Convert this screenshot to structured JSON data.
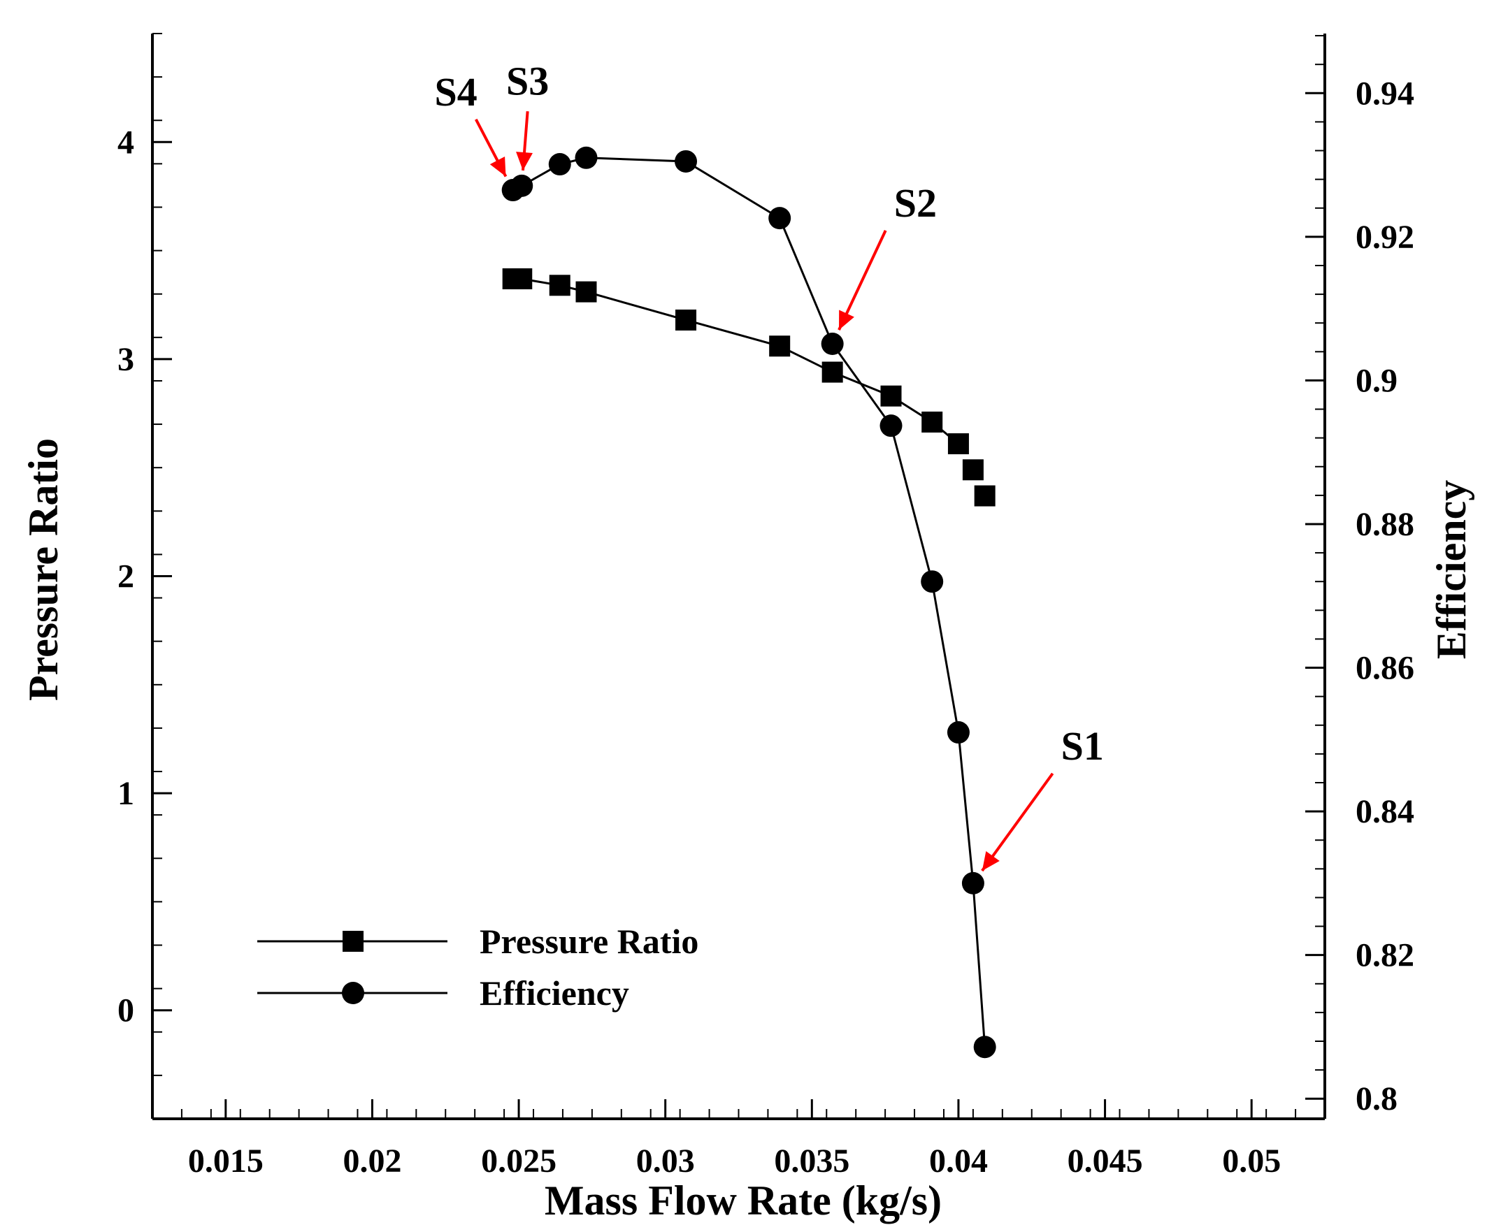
{
  "chart_data": {
    "type": "line",
    "xlabel": "Mass Flow Rate (kg/s)",
    "ylabel": "Pressure Ratio",
    "y2label": "Efficiency",
    "xlim": [
      0.0125,
      0.0525
    ],
    "ylim": [
      -0.5,
      4.5
    ],
    "y2lim": [
      0.7972,
      0.9483
    ],
    "xticks": [
      0.015,
      0.02,
      0.025,
      0.03,
      0.035,
      0.04,
      0.045,
      0.05
    ],
    "xtick_labels": [
      "0.015",
      "0.02",
      "0.025",
      "0.03",
      "0.035",
      "0.04",
      "0.045",
      "0.05"
    ],
    "yticks": [
      0,
      1,
      2,
      3,
      4
    ],
    "ytick_labels": [
      "0",
      "1",
      "2",
      "3",
      "4"
    ],
    "y2ticks": [
      0.8,
      0.82,
      0.84,
      0.86,
      0.88,
      0.9,
      0.92,
      0.94
    ],
    "y2tick_labels": [
      "0.8",
      "0.82",
      "0.84",
      "0.86",
      "0.88",
      "0.9",
      "0.92",
      "0.94"
    ],
    "grid": false,
    "legend_position": "bottom-left",
    "series": [
      {
        "name": "Pressure Ratio",
        "axis": "left",
        "marker": "square",
        "line": false,
        "x": [
          0.0248,
          0.0251,
          0.0264,
          0.0273,
          0.0307,
          0.0339,
          0.0357,
          0.0377,
          0.0391,
          0.04,
          0.0405,
          0.0409
        ],
        "y": [
          3.37,
          3.37,
          3.34,
          3.31,
          3.18,
          3.06,
          2.94,
          2.83,
          2.71,
          2.61,
          2.49,
          2.37
        ]
      },
      {
        "name": "Efficiency",
        "axis": "right",
        "marker": "circle",
        "line": true,
        "x": [
          0.0248,
          0.0251,
          0.0264,
          0.0273,
          0.0307,
          0.0339,
          0.0357,
          0.0377,
          0.0391,
          0.04,
          0.0405,
          0.0409
        ],
        "y": [
          0.9265,
          0.9271,
          0.9301,
          0.931,
          0.9305,
          0.9226,
          0.9051,
          0.8937,
          0.872,
          0.851,
          0.83,
          0.8072
        ]
      },
      {
        "name": "Pressure Ratio line",
        "axis": "left",
        "marker": "none",
        "line": true,
        "x": [
          0.0248,
          0.0251,
          0.0264,
          0.0273,
          0.0307,
          0.0339,
          0.0357,
          0.0377,
          0.0391,
          0.04
        ],
        "y": [
          3.37,
          3.37,
          3.34,
          3.31,
          3.18,
          3.06,
          2.94,
          2.83,
          2.71,
          2.61
        ]
      }
    ],
    "legend": [
      {
        "label": "Pressure Ratio",
        "marker": "square"
      },
      {
        "label": "Efficiency",
        "marker": "circle"
      }
    ],
    "annotations": [
      {
        "label": "S1",
        "x": 0.0405,
        "y2": 0.83,
        "label_x": 0.0435,
        "label_y2": 0.848
      },
      {
        "label": "S2",
        "x": 0.0357,
        "y2": 0.9051,
        "label_x": 0.0378,
        "label_y2": 0.9236
      },
      {
        "label": "S3",
        "x": 0.0251,
        "y2": 0.9271,
        "label_x": 0.0253,
        "label_y2": 0.9402
      },
      {
        "label": "S4",
        "x": 0.0248,
        "y2": 0.9265,
        "label_x": 0.0233,
        "label_y2": 0.9381
      }
    ],
    "colors": {
      "series": "#000000",
      "annotation_arrow": "#ff0000",
      "text": "#000000"
    }
  }
}
